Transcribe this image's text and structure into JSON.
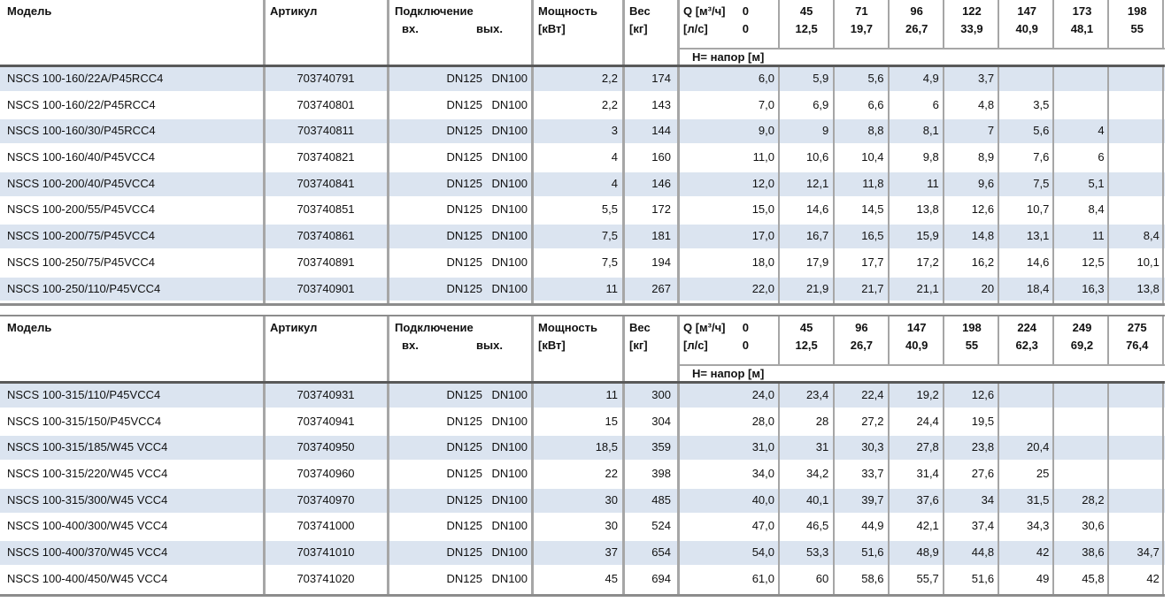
{
  "colors": {
    "row_alt": "#dbe4f0",
    "grid_line": "#a6a6a6",
    "header_rule": "#595959",
    "outer_rule": "#8c8c8c"
  },
  "columns": {
    "model": "Модель",
    "article": "Артикул",
    "connection": "Подключение",
    "connection_in": "вх.",
    "connection_out": "вых.",
    "power_line1": "Мощность",
    "power_line2": "[кВт]",
    "weight_line1": "Вес",
    "weight_line2": "[кг]",
    "q_line1": "Q [м³/ч]",
    "q_line2": "[л/с]",
    "head_label": "H= напор [м]"
  },
  "tables": [
    {
      "q_m3h": [
        "0",
        "45",
        "71",
        "96",
        "122",
        "147",
        "173",
        "198"
      ],
      "q_ls": [
        "0",
        "12,5",
        "19,7",
        "26,7",
        "33,9",
        "40,9",
        "48,1",
        "55"
      ],
      "rows": [
        {
          "model": "NSCS 100-160/22A/P45RCC4",
          "article": "703740791",
          "dn_in": "DN125",
          "dn_out": "DN100",
          "power": "2,2",
          "weight": "174",
          "h": [
            "6,0",
            "5,9",
            "5,6",
            "4,9",
            "3,7",
            "",
            "",
            ""
          ]
        },
        {
          "model": "NSCS 100-160/22/P45RCC4",
          "article": "703740801",
          "dn_in": "DN125",
          "dn_out": "DN100",
          "power": "2,2",
          "weight": "143",
          "h": [
            "7,0",
            "6,9",
            "6,6",
            "6",
            "4,8",
            "3,5",
            "",
            ""
          ]
        },
        {
          "model": "NSCS 100-160/30/P45RCC4",
          "article": "703740811",
          "dn_in": "DN125",
          "dn_out": "DN100",
          "power": "3",
          "weight": "144",
          "h": [
            "9,0",
            "9",
            "8,8",
            "8,1",
            "7",
            "5,6",
            "4",
            ""
          ]
        },
        {
          "model": "NSCS 100-160/40/P45VCC4",
          "article": "703740821",
          "dn_in": "DN125",
          "dn_out": "DN100",
          "power": "4",
          "weight": "160",
          "h": [
            "11,0",
            "10,6",
            "10,4",
            "9,8",
            "8,9",
            "7,6",
            "6",
            ""
          ]
        },
        {
          "model": "NSCS 100-200/40/P45VCC4",
          "article": "703740841",
          "dn_in": "DN125",
          "dn_out": "DN100",
          "power": "4",
          "weight": "146",
          "h": [
            "12,0",
            "12,1",
            "11,8",
            "11",
            "9,6",
            "7,5",
            "5,1",
            ""
          ]
        },
        {
          "model": "NSCS 100-200/55/P45VCC4",
          "article": "703740851",
          "dn_in": "DN125",
          "dn_out": "DN100",
          "power": "5,5",
          "weight": "172",
          "h": [
            "15,0",
            "14,6",
            "14,5",
            "13,8",
            "12,6",
            "10,7",
            "8,4",
            ""
          ]
        },
        {
          "model": "NSCS 100-200/75/P45VCC4",
          "article": "703740861",
          "dn_in": "DN125",
          "dn_out": "DN100",
          "power": "7,5",
          "weight": "181",
          "h": [
            "17,0",
            "16,7",
            "16,5",
            "15,9",
            "14,8",
            "13,1",
            "11",
            "8,4"
          ]
        },
        {
          "model": "NSCS 100-250/75/P45VCC4",
          "article": "703740891",
          "dn_in": "DN125",
          "dn_out": "DN100",
          "power": "7,5",
          "weight": "194",
          "h": [
            "18,0",
            "17,9",
            "17,7",
            "17,2",
            "16,2",
            "14,6",
            "12,5",
            "10,1"
          ]
        },
        {
          "model": "NSCS 100-250/110/P45VCC4",
          "article": "703740901",
          "dn_in": "DN125",
          "dn_out": "DN100",
          "power": "11",
          "weight": "267",
          "h": [
            "22,0",
            "21,9",
            "21,7",
            "21,1",
            "20",
            "18,4",
            "16,3",
            "13,8"
          ]
        }
      ]
    },
    {
      "q_m3h": [
        "0",
        "45",
        "96",
        "147",
        "198",
        "224",
        "249",
        "275"
      ],
      "q_ls": [
        "0",
        "12,5",
        "26,7",
        "40,9",
        "55",
        "62,3",
        "69,2",
        "76,4"
      ],
      "rows": [
        {
          "model": "NSCS 100-315/110/P45VCC4",
          "article": "703740931",
          "dn_in": "DN125",
          "dn_out": "DN100",
          "power": "11",
          "weight": "300",
          "h": [
            "24,0",
            "23,4",
            "22,4",
            "19,2",
            "12,6",
            "",
            "",
            ""
          ]
        },
        {
          "model": "NSCS 100-315/150/P45VCC4",
          "article": "703740941",
          "dn_in": "DN125",
          "dn_out": "DN100",
          "power": "15",
          "weight": "304",
          "h": [
            "28,0",
            "28",
            "27,2",
            "24,4",
            "19,5",
            "",
            "",
            ""
          ]
        },
        {
          "model": "NSCS 100-315/185/W45 VCC4",
          "article": "703740950",
          "dn_in": "DN125",
          "dn_out": "DN100",
          "power": "18,5",
          "weight": "359",
          "h": [
            "31,0",
            "31",
            "30,3",
            "27,8",
            "23,8",
            "20,4",
            "",
            ""
          ]
        },
        {
          "model": "NSCS 100-315/220/W45 VCC4",
          "article": "703740960",
          "dn_in": "DN125",
          "dn_out": "DN100",
          "power": "22",
          "weight": "398",
          "h": [
            "34,0",
            "34,2",
            "33,7",
            "31,4",
            "27,6",
            "25",
            "",
            ""
          ]
        },
        {
          "model": "NSCS 100-315/300/W45 VCC4",
          "article": "703740970",
          "dn_in": "DN125",
          "dn_out": "DN100",
          "power": "30",
          "weight": "485",
          "h": [
            "40,0",
            "40,1",
            "39,7",
            "37,6",
            "34",
            "31,5",
            "28,2",
            ""
          ]
        },
        {
          "model": "NSCS 100-400/300/W45 VCC4",
          "article": "703741000",
          "dn_in": "DN125",
          "dn_out": "DN100",
          "power": "30",
          "weight": "524",
          "h": [
            "47,0",
            "46,5",
            "44,9",
            "42,1",
            "37,4",
            "34,3",
            "30,6",
            ""
          ]
        },
        {
          "model": "NSCS 100-400/370/W45 VCC4",
          "article": "703741010",
          "dn_in": "DN125",
          "dn_out": "DN100",
          "power": "37",
          "weight": "654",
          "h": [
            "54,0",
            "53,3",
            "51,6",
            "48,9",
            "44,8",
            "42",
            "38,6",
            "34,7"
          ]
        },
        {
          "model": "NSCS 100-400/450/W45 VCC4",
          "article": "703741020",
          "dn_in": "DN125",
          "dn_out": "DN100",
          "power": "45",
          "weight": "694",
          "h": [
            "61,0",
            "60",
            "58,6",
            "55,7",
            "51,6",
            "49",
            "45,8",
            "42"
          ]
        }
      ]
    }
  ]
}
